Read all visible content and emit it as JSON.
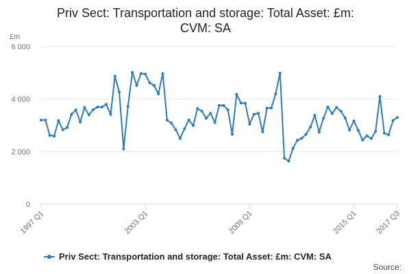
{
  "chart_data": {
    "type": "line",
    "title": "Priv Sect: Transportation and storage: Total Asset: £m: CVM: SA",
    "title_lines": [
      "Priv Sect: Transportation and storage: Total Asset: £m:",
      "CVM: SA"
    ],
    "ylabel": "£m",
    "xlabel": "",
    "ylim": [
      0,
      6000
    ],
    "yticks": [
      0,
      2000,
      4000,
      6000
    ],
    "ytick_labels": [
      "0",
      "2 000",
      "4 000",
      "6 000"
    ],
    "xtick_labels": [
      "1997 Q1",
      "2003 Q1",
      "2009 Q1",
      "2015 Q1",
      "2017 Q3"
    ],
    "xtick_indices": [
      0,
      24,
      48,
      72,
      82
    ],
    "grid": true,
    "legend_position": "bottom",
    "source_label": "Source:",
    "color": "#2b7bb9",
    "series": [
      {
        "name": "Priv Sect: Transportation and storage: Total Asset: £m: CVM: SA",
        "x": [
          "1997 Q1",
          "1997 Q2",
          "1997 Q3",
          "1997 Q4",
          "1998 Q1",
          "1998 Q2",
          "1998 Q3",
          "1998 Q4",
          "1999 Q1",
          "1999 Q2",
          "1999 Q3",
          "1999 Q4",
          "2000 Q1",
          "2000 Q2",
          "2000 Q3",
          "2000 Q4",
          "2001 Q1",
          "2001 Q2",
          "2001 Q3",
          "2001 Q4",
          "2002 Q1",
          "2002 Q2",
          "2002 Q3",
          "2002 Q4",
          "2003 Q1",
          "2003 Q2",
          "2003 Q3",
          "2003 Q4",
          "2004 Q1",
          "2004 Q2",
          "2004 Q3",
          "2004 Q4",
          "2005 Q1",
          "2005 Q2",
          "2005 Q3",
          "2005 Q4",
          "2006 Q1",
          "2006 Q2",
          "2006 Q3",
          "2006 Q4",
          "2007 Q1",
          "2007 Q2",
          "2007 Q3",
          "2007 Q4",
          "2008 Q1",
          "2008 Q2",
          "2008 Q3",
          "2008 Q4",
          "2009 Q1",
          "2009 Q2",
          "2009 Q3",
          "2009 Q4",
          "2010 Q1",
          "2010 Q2",
          "2010 Q3",
          "2010 Q4",
          "2011 Q1",
          "2011 Q2",
          "2011 Q3",
          "2011 Q4",
          "2012 Q1",
          "2012 Q2",
          "2012 Q3",
          "2012 Q4",
          "2013 Q1",
          "2013 Q2",
          "2013 Q3",
          "2013 Q4",
          "2014 Q1",
          "2014 Q2",
          "2014 Q3",
          "2014 Q4",
          "2015 Q1",
          "2015 Q2",
          "2015 Q3",
          "2015 Q4",
          "2016 Q1",
          "2016 Q2",
          "2016 Q3",
          "2016 Q4",
          "2017 Q1",
          "2017 Q2",
          "2017 Q3"
        ],
        "values": [
          3200,
          3200,
          2620,
          2590,
          3180,
          2830,
          2920,
          3420,
          3590,
          3130,
          3680,
          3400,
          3600,
          3700,
          3700,
          3800,
          3420,
          4870,
          4270,
          2100,
          3720,
          5020,
          4520,
          4980,
          4950,
          4620,
          4520,
          4200,
          4970,
          3200,
          3090,
          2830,
          2500,
          2870,
          3200,
          2990,
          3640,
          3540,
          3270,
          3460,
          3110,
          3760,
          3760,
          3590,
          2660,
          4180,
          3850,
          3840,
          3050,
          3420,
          3460,
          2750,
          3660,
          3660,
          4200,
          4990,
          1750,
          1640,
          2130,
          2430,
          2510,
          2660,
          2940,
          3380,
          2750,
          3270,
          3700,
          3450,
          3680,
          3540,
          3280,
          2820,
          3170,
          2810,
          2440,
          2600,
          2500,
          2770,
          4100,
          2700,
          2640,
          3190,
          3300
        ]
      }
    ]
  }
}
